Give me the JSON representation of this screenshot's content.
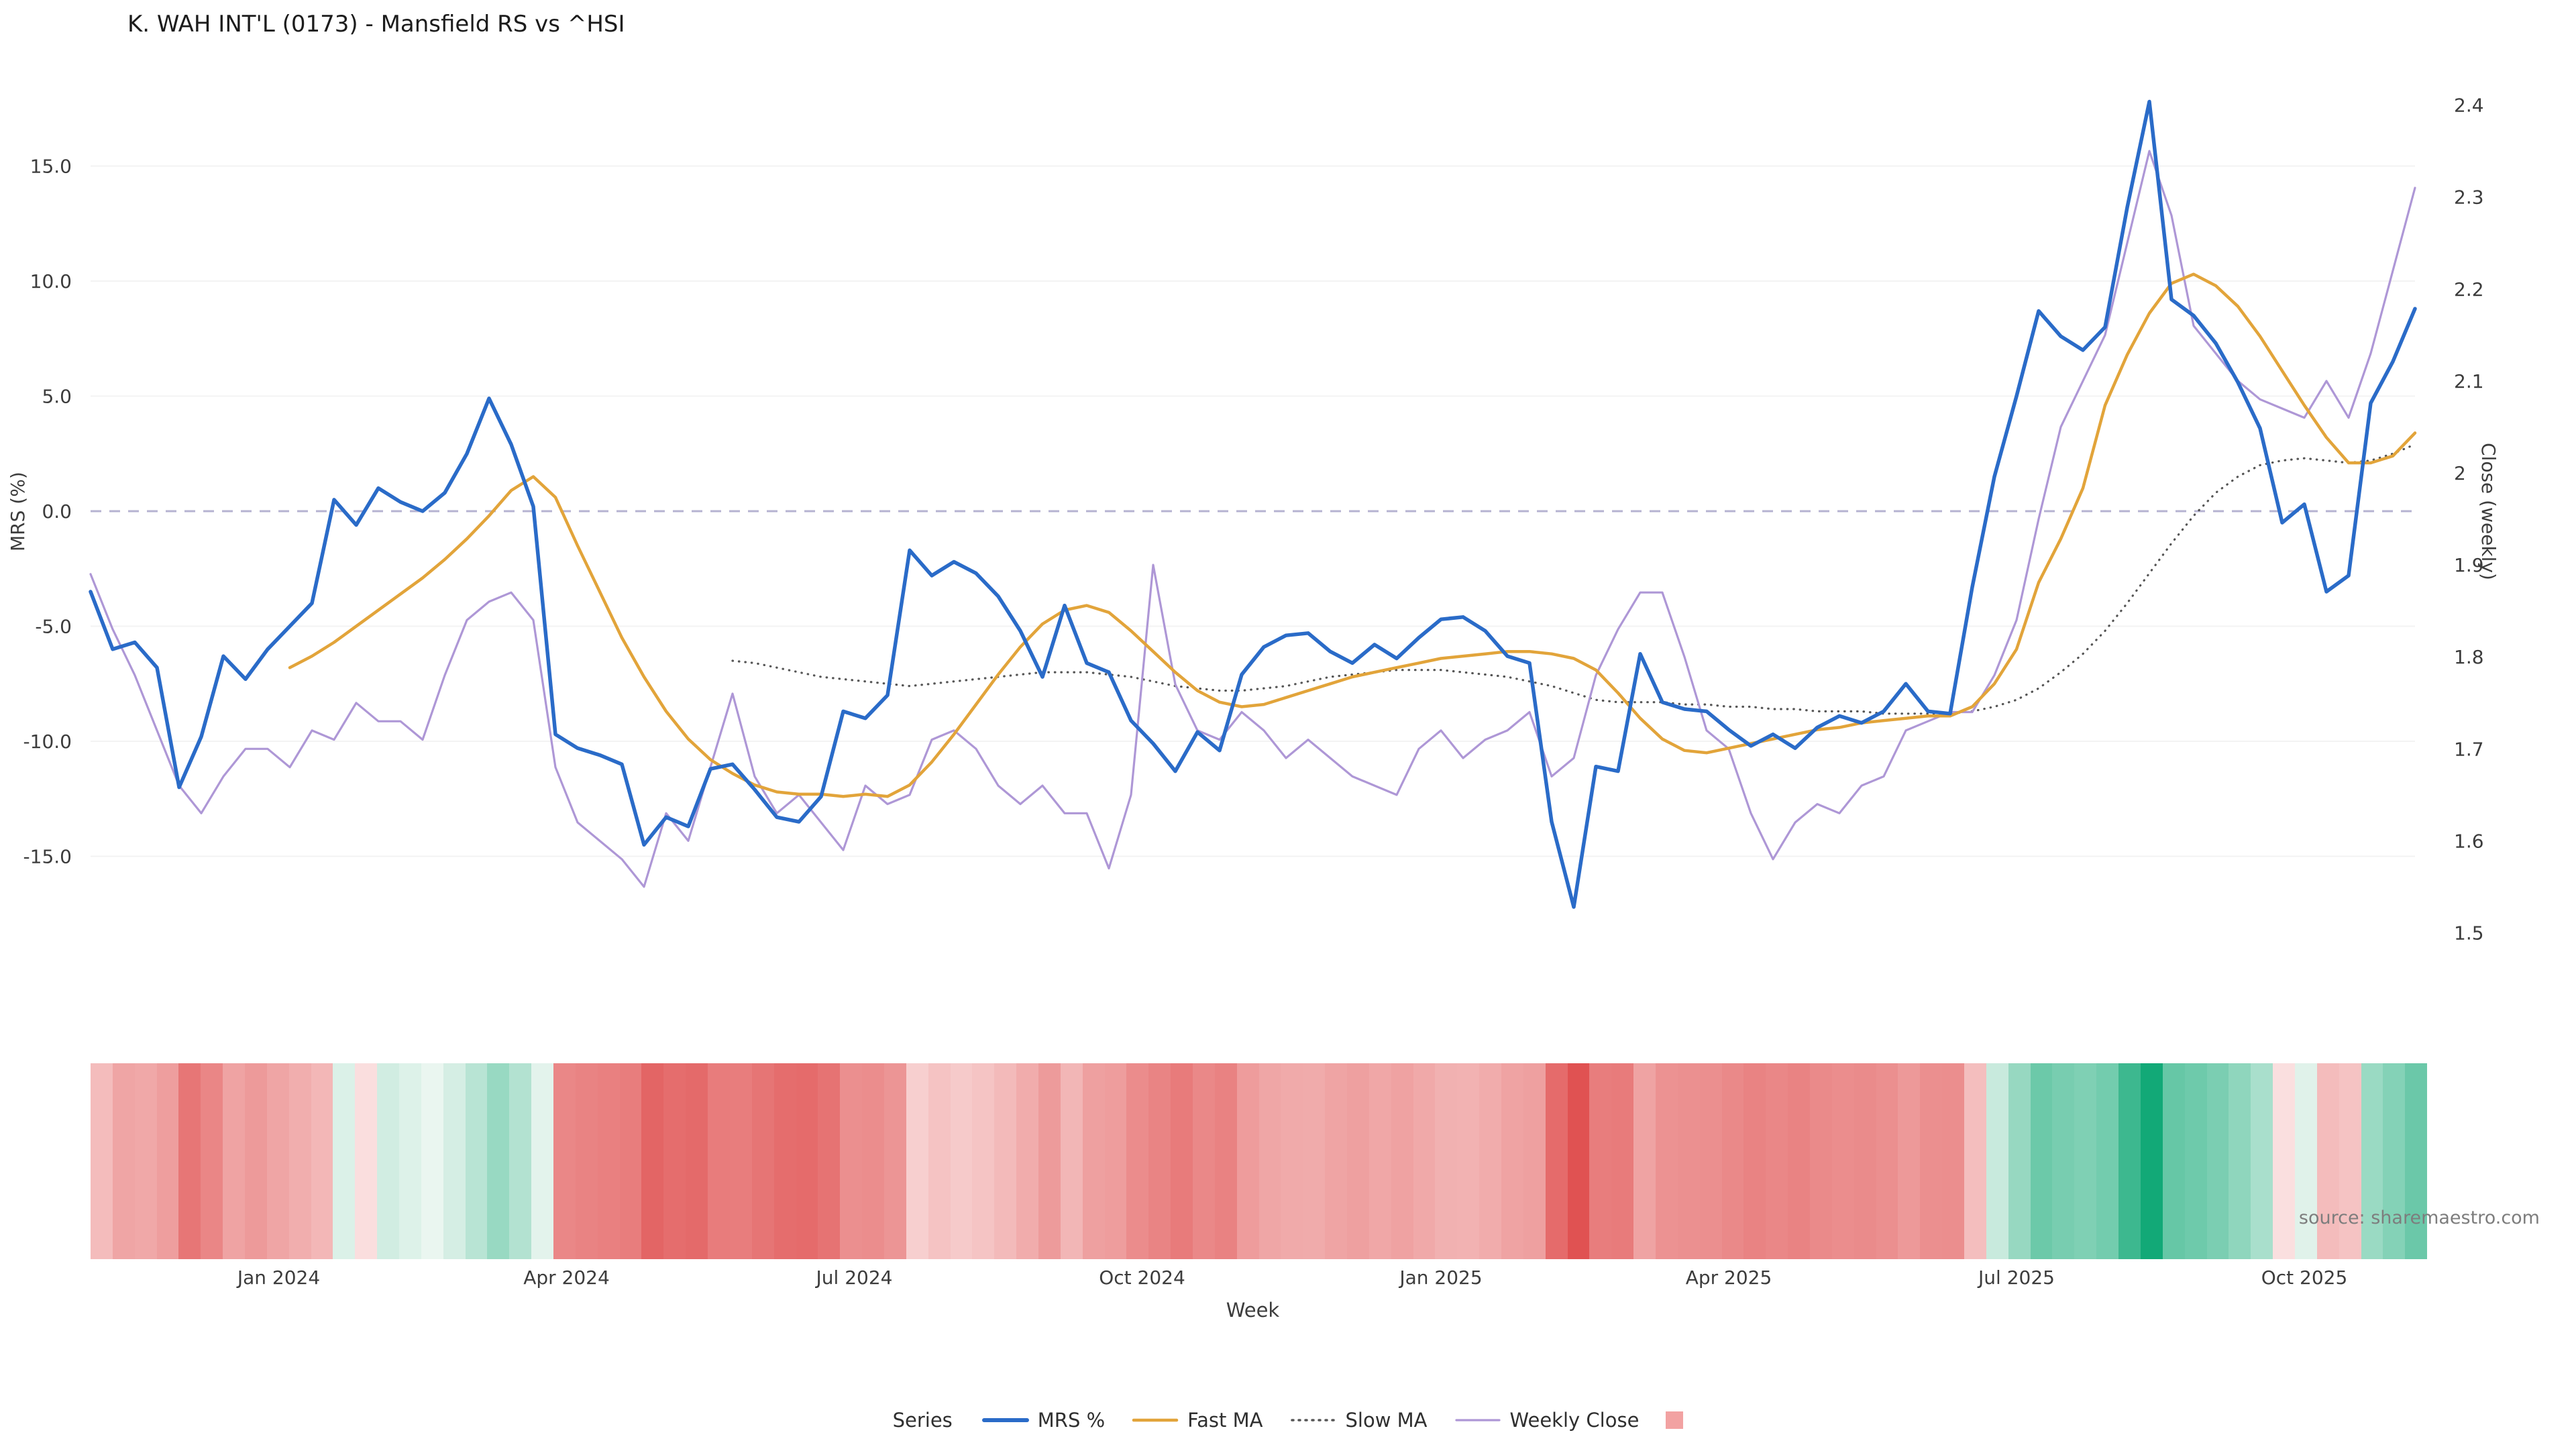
{
  "title": "K. WAH INT'L (0173) - Mansfield RS vs ^HSI",
  "source_credit": "source: sharemaestro.com",
  "axes": {
    "x_label": "Week",
    "y_left_label": "MRS (%)",
    "y_right_label": "Close (weekly)"
  },
  "legend": {
    "title": "Series",
    "items": [
      {
        "label": "MRS %",
        "color": "#2a6bc8",
        "type": "line",
        "dash": "",
        "width": 6
      },
      {
        "label": "Fast MA",
        "color": "#e2a43a",
        "type": "line",
        "dash": "",
        "width": 4.5
      },
      {
        "label": "Slow MA",
        "color": "#555555",
        "type": "line",
        "dash": "2 8",
        "width": 3.5
      },
      {
        "label": "Weekly Close",
        "color": "#ae97d6",
        "type": "line",
        "dash": "",
        "width": 3.2
      },
      {
        "label": "",
        "color": "#f2a2a2",
        "type": "swatch",
        "dash": "",
        "width": 0
      }
    ]
  },
  "chart_data": {
    "type": "line",
    "subtype": "dual_axis_weekly_lines_with_heatmap_strip",
    "title": "K. WAH INT'L (0173) - Mansfield RS vs ^HSI",
    "xlabel": "Week",
    "ylabel_left": "MRS (%)",
    "ylabel_right": "Close (weekly)",
    "n_points": 106,
    "x_range_note": "weekly points, early Nov 2023 through mid Nov 2025",
    "grid": "faint horizontal only",
    "x_ticks": [
      {
        "label": "Jan 2024",
        "index": 8.5
      },
      {
        "label": "Apr 2024",
        "index": 21.5
      },
      {
        "label": "Jul 2024",
        "index": 34.5
      },
      {
        "label": "Oct 2024",
        "index": 47.5
      },
      {
        "label": "Jan 2025",
        "index": 61
      },
      {
        "label": "Apr 2025",
        "index": 74
      },
      {
        "label": "Jul 2025",
        "index": 87
      },
      {
        "label": "Oct 2025",
        "index": 100
      }
    ],
    "y_left_ticks": [
      15.0,
      10.0,
      5.0,
      0.0,
      -5.0,
      -10.0,
      -15.0
    ],
    "y_left_tick_labels": [
      "15.0",
      "10.0",
      "5.0",
      "0.0",
      "-5.0",
      "-10.0",
      "-15.0"
    ],
    "y_left_range": [
      -18.5,
      19.5
    ],
    "y_right_ticks": [
      2.4,
      2.3,
      2.2,
      2.1,
      2.0,
      1.9,
      1.8,
      1.7,
      1.6,
      1.5
    ],
    "y_right_tick_labels": [
      "2.4",
      "2.3",
      "2.2",
      "2.1",
      "2",
      "1.9",
      "1.8",
      "1.7",
      "1.6",
      "1.5"
    ],
    "y_right_range": [
      1.45,
      2.45
    ],
    "zero_line": {
      "value": 0,
      "color": "#b6b3d1",
      "dash": "16 12"
    },
    "series": [
      {
        "name": "MRS %",
        "axis": "left",
        "color": "#2a6bc8",
        "dash": "",
        "width": 5.5,
        "values": [
          -3.5,
          -6.0,
          -5.7,
          -6.8,
          -12.0,
          -9.8,
          -6.3,
          -7.3,
          -6.0,
          -5.0,
          -4.0,
          0.5,
          -0.6,
          1.0,
          0.4,
          0.0,
          0.8,
          2.5,
          4.9,
          2.9,
          0.2,
          -9.7,
          -10.3,
          -10.6,
          -11.0,
          -14.5,
          -13.3,
          -13.7,
          -11.2,
          -11.0,
          -12.1,
          -13.3,
          -13.5,
          -12.4,
          -8.7,
          -9.0,
          -8.0,
          -1.7,
          -2.8,
          -2.2,
          -2.7,
          -3.7,
          -5.2,
          -7.2,
          -4.1,
          -6.6,
          -7.0,
          -9.1,
          -10.1,
          -11.3,
          -9.6,
          -10.4,
          -7.1,
          -5.9,
          -5.4,
          -5.3,
          -6.1,
          -6.6,
          -5.8,
          -6.4,
          -5.5,
          -4.7,
          -4.6,
          -5.2,
          -6.3,
          -6.6,
          -13.5,
          -17.2,
          -11.1,
          -11.3,
          -6.2,
          -8.3,
          -8.6,
          -8.7,
          -9.5,
          -10.2,
          -9.7,
          -10.3,
          -9.4,
          -8.9,
          -9.2,
          -8.7,
          -7.5,
          -8.7,
          -8.8,
          -3.3,
          1.5,
          5.0,
          8.7,
          7.6,
          7.0,
          8.0,
          13.2,
          17.8,
          9.2,
          8.5,
          7.3,
          5.6,
          3.6,
          -0.5,
          0.3,
          -3.5,
          -2.8,
          4.7,
          6.5,
          8.8
        ]
      },
      {
        "name": "Fast MA",
        "axis": "left",
        "color": "#e2a43a",
        "dash": "",
        "width": 4.5,
        "values": [
          null,
          null,
          null,
          null,
          null,
          null,
          null,
          null,
          null,
          -6.8,
          -6.3,
          -5.7,
          -5.0,
          -4.3,
          -3.6,
          -2.9,
          -2.1,
          -1.2,
          -0.2,
          0.9,
          1.5,
          0.6,
          -1.5,
          -3.5,
          -5.5,
          -7.2,
          -8.7,
          -9.9,
          -10.8,
          -11.4,
          -11.9,
          -12.2,
          -12.3,
          -12.3,
          -12.4,
          -12.3,
          -12.4,
          -11.9,
          -10.9,
          -9.7,
          -8.4,
          -7.1,
          -5.9,
          -4.9,
          -4.3,
          -4.1,
          -4.4,
          -5.2,
          -6.1,
          -7.0,
          -7.8,
          -8.3,
          -8.5,
          -8.4,
          -8.1,
          -7.8,
          -7.5,
          -7.2,
          -7.0,
          -6.8,
          -6.6,
          -6.4,
          -6.3,
          -6.2,
          -6.1,
          -6.1,
          -6.2,
          -6.4,
          -6.9,
          -7.9,
          -9.0,
          -9.9,
          -10.4,
          -10.5,
          -10.3,
          -10.1,
          -9.9,
          -9.7,
          -9.5,
          -9.4,
          -9.2,
          -9.1,
          -9.0,
          -8.9,
          -8.9,
          -8.5,
          -7.5,
          -6.0,
          -3.1,
          -1.2,
          1.0,
          4.6,
          6.8,
          8.6,
          9.9,
          10.3,
          9.8,
          8.9,
          7.6,
          6.1,
          4.6,
          3.2,
          2.1,
          2.1,
          2.4,
          3.4
        ]
      },
      {
        "name": "Slow MA",
        "axis": "left",
        "color": "#555555",
        "dash": "0.5 9",
        "width": 3.2,
        "values": [
          null,
          null,
          null,
          null,
          null,
          null,
          null,
          null,
          null,
          null,
          null,
          null,
          null,
          null,
          null,
          null,
          null,
          null,
          null,
          null,
          null,
          null,
          null,
          null,
          null,
          null,
          null,
          null,
          null,
          -6.5,
          -6.6,
          -6.8,
          -7.0,
          -7.2,
          -7.3,
          -7.4,
          -7.5,
          -7.6,
          -7.5,
          -7.4,
          -7.3,
          -7.2,
          -7.1,
          -7.0,
          -7.0,
          -7.0,
          -7.1,
          -7.2,
          -7.4,
          -7.6,
          -7.7,
          -7.8,
          -7.8,
          -7.7,
          -7.6,
          -7.4,
          -7.2,
          -7.1,
          -7.0,
          -6.9,
          -6.9,
          -6.9,
          -7.0,
          -7.1,
          -7.2,
          -7.4,
          -7.6,
          -7.9,
          -8.2,
          -8.3,
          -8.3,
          -8.3,
          -8.4,
          -8.4,
          -8.5,
          -8.5,
          -8.6,
          -8.6,
          -8.7,
          -8.7,
          -8.7,
          -8.8,
          -8.8,
          -8.8,
          -8.8,
          -8.7,
          -8.5,
          -8.2,
          -7.7,
          -7.0,
          -6.2,
          -5.2,
          -4.0,
          -2.7,
          -1.4,
          -0.2,
          0.8,
          1.5,
          2.0,
          2.2,
          2.3,
          2.2,
          2.1,
          2.2,
          2.5,
          2.9
        ]
      },
      {
        "name": "Weekly Close",
        "axis": "right",
        "color": "#ae97d6",
        "dash": "",
        "width": 3.2,
        "values": [
          1.89,
          1.83,
          1.78,
          1.72,
          1.66,
          1.63,
          1.67,
          1.7,
          1.7,
          1.68,
          1.72,
          1.71,
          1.75,
          1.73,
          1.73,
          1.71,
          1.78,
          1.84,
          1.86,
          1.87,
          1.84,
          1.68,
          1.62,
          1.6,
          1.58,
          1.55,
          1.63,
          1.6,
          1.68,
          1.76,
          1.67,
          1.63,
          1.65,
          1.62,
          1.59,
          1.66,
          1.64,
          1.65,
          1.71,
          1.72,
          1.7,
          1.66,
          1.64,
          1.66,
          1.63,
          1.63,
          1.57,
          1.65,
          1.9,
          1.77,
          1.72,
          1.71,
          1.74,
          1.72,
          1.69,
          1.71,
          1.69,
          1.67,
          1.66,
          1.65,
          1.7,
          1.72,
          1.69,
          1.71,
          1.72,
          1.74,
          1.67,
          1.69,
          1.78,
          1.83,
          1.87,
          1.87,
          1.8,
          1.72,
          1.7,
          1.63,
          1.58,
          1.62,
          1.64,
          1.63,
          1.66,
          1.67,
          1.72,
          1.73,
          1.74,
          1.74,
          1.78,
          1.84,
          1.95,
          2.05,
          2.1,
          2.15,
          2.25,
          2.35,
          2.28,
          2.16,
          2.13,
          2.1,
          2.08,
          2.07,
          2.06,
          2.1,
          2.06,
          2.13,
          2.22,
          2.31
        ]
      }
    ],
    "heatmap_strip": {
      "based_on": "MRS %",
      "negative_color": "#df4d4d",
      "positive_color": "#10a876",
      "negative_soft": "#fceaea",
      "positive_soft": "#eaf6f0",
      "max_abs": 18
    }
  }
}
